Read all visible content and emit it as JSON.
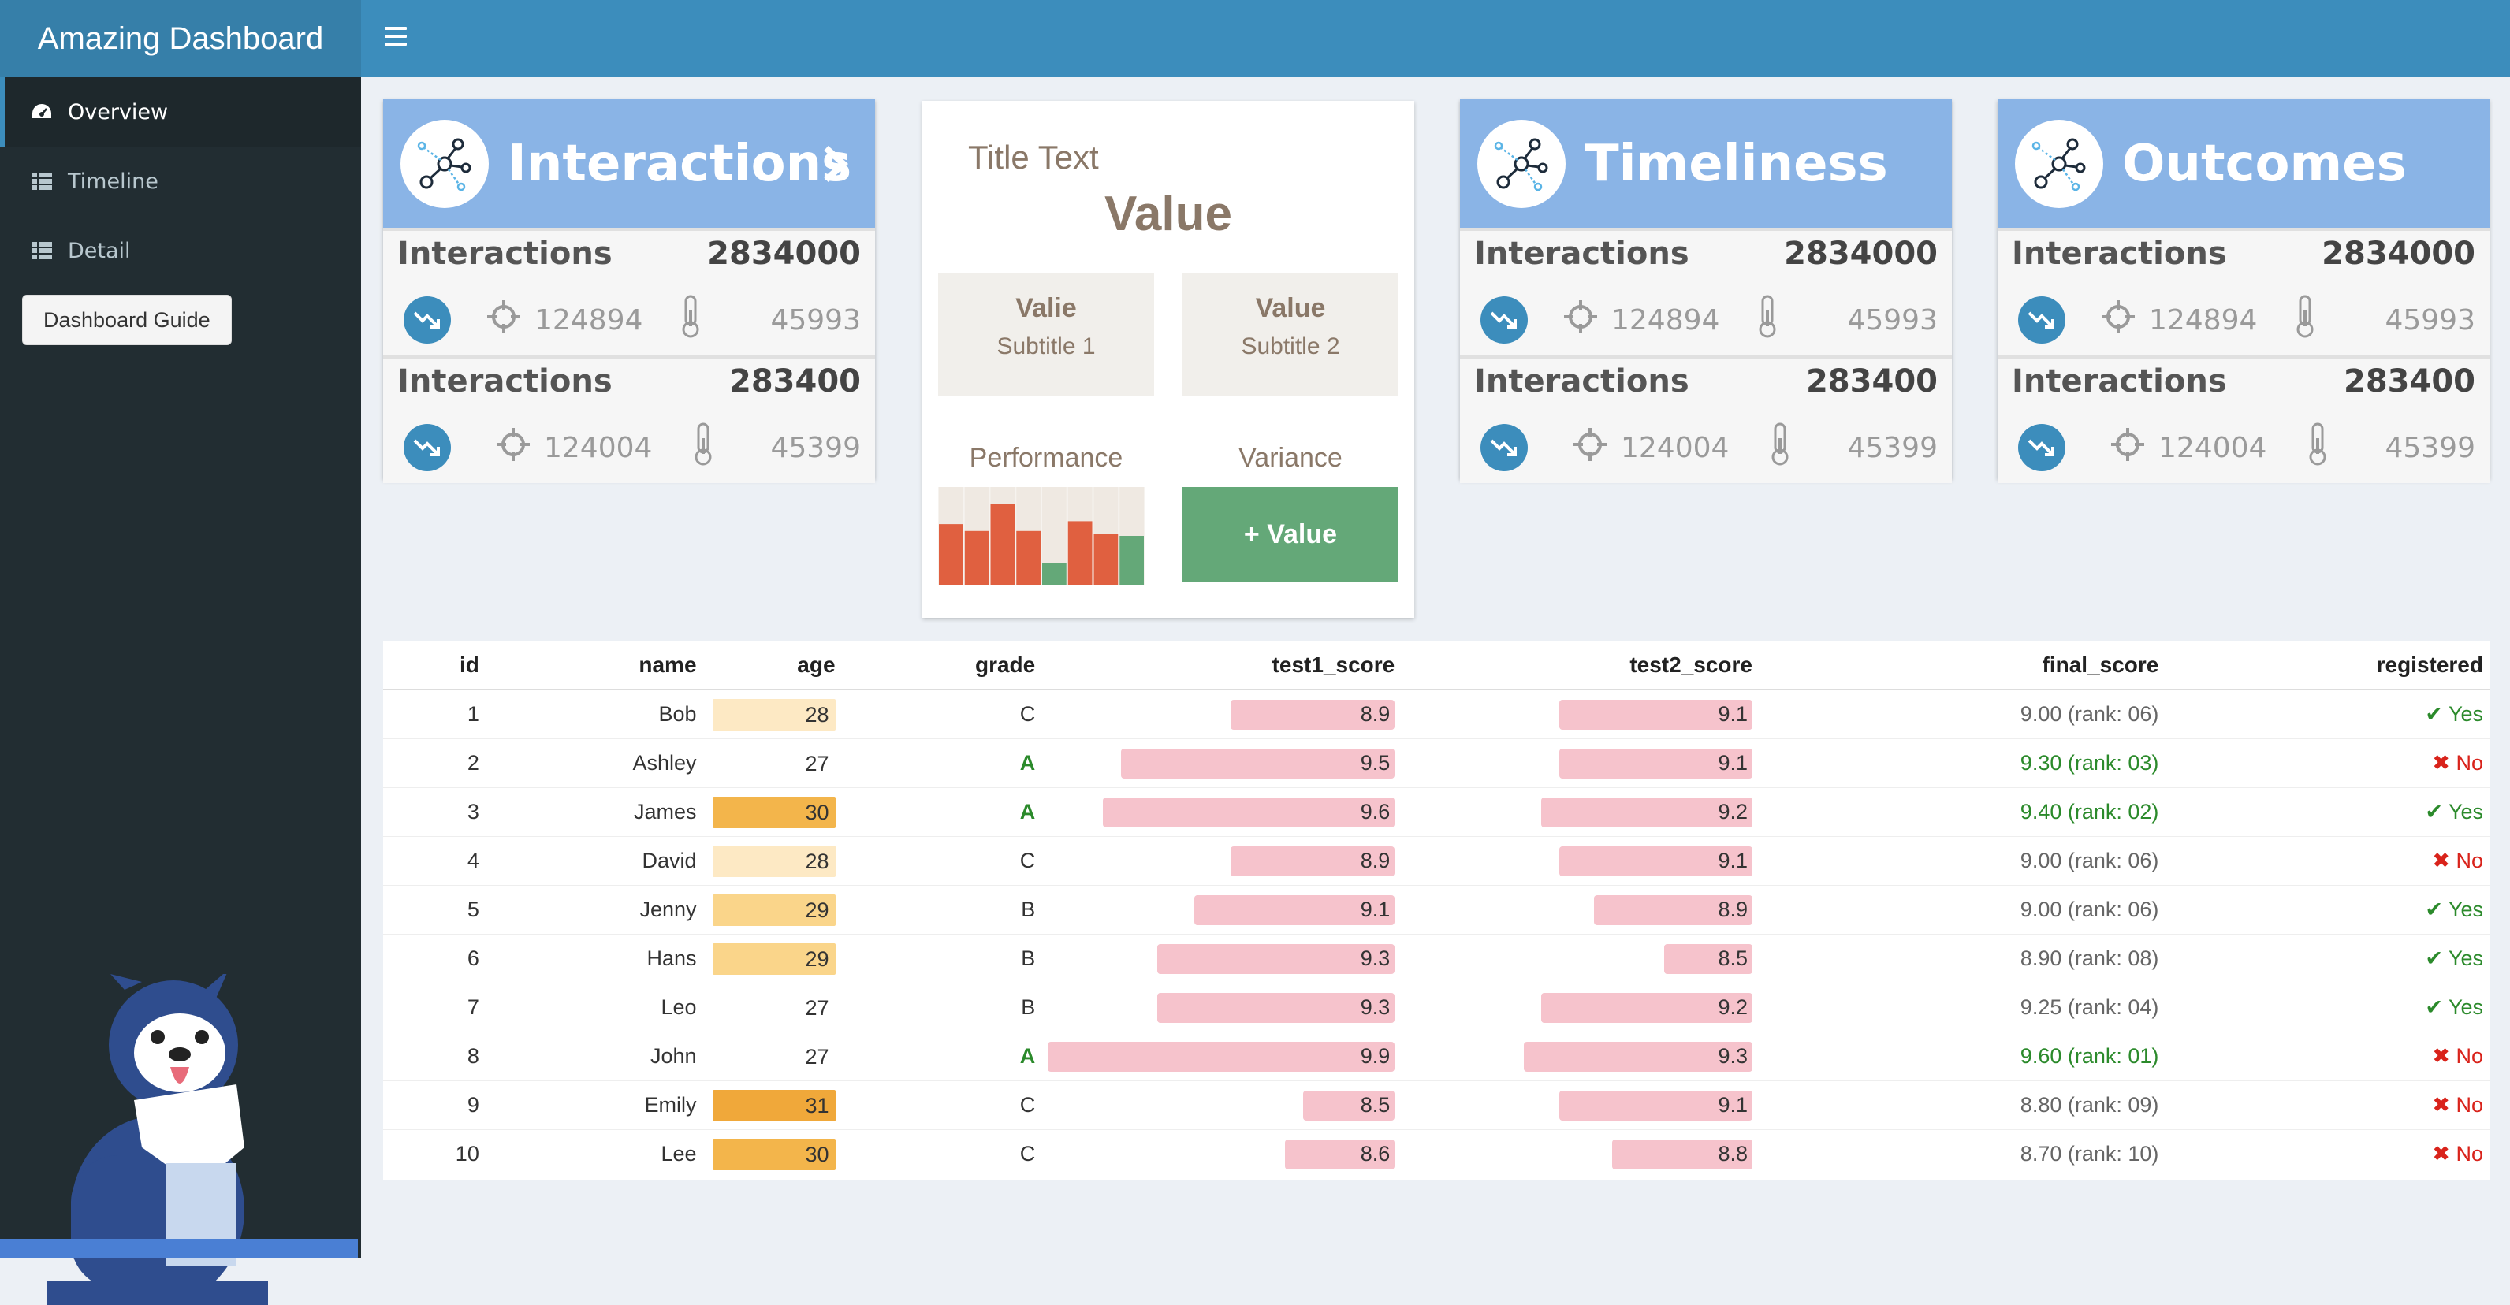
{
  "app": {
    "title": "Amazing Dashboard"
  },
  "sidebar": {
    "items": [
      {
        "label": "Overview",
        "icon": "dashboard-icon",
        "active": true
      },
      {
        "label": "Timeline",
        "icon": "grid-icon",
        "active": false
      },
      {
        "label": "Detail",
        "icon": "grid-icon",
        "active": false
      }
    ],
    "guide_button": "Dashboard Guide"
  },
  "value_boxes": [
    {
      "title": "Interactions",
      "rows": [
        {
          "label": "Interactions",
          "total": "2834000",
          "value1": "124894",
          "value2": "45993"
        },
        {
          "label": "Interactions",
          "total": "283400",
          "value1": "124004",
          "value2": "45399"
        }
      ]
    },
    {
      "title": "Timeliness",
      "rows": [
        {
          "label": "Interactions",
          "total": "2834000",
          "value1": "124894",
          "value2": "45993"
        },
        {
          "label": "Interactions",
          "total": "283400",
          "value1": "124004",
          "value2": "45399"
        }
      ]
    },
    {
      "title": "Outcomes",
      "rows": [
        {
          "label": "Interactions",
          "total": "2834000",
          "value1": "124894",
          "value2": "45993"
        },
        {
          "label": "Interactions",
          "total": "283400",
          "value1": "124004",
          "value2": "45399"
        }
      ]
    }
  ],
  "summary_card": {
    "title": "Title Text",
    "value": "Value",
    "tile1": {
      "title": "Valie",
      "subtitle": "Subtitle 1"
    },
    "tile2": {
      "title": "Value",
      "subtitle": "Subtitle 2"
    },
    "performance_label": "Performance",
    "variance_label": "Variance",
    "variance_button": "+ Value",
    "performance_bars": [
      0.62,
      0.55,
      0.83,
      0.55,
      0.22,
      0.65,
      0.52,
      0.5
    ],
    "performance_colors": [
      "#e06040",
      "#e06040",
      "#e06040",
      "#e06040",
      "#64a878",
      "#e06040",
      "#e06040",
      "#64a878"
    ]
  },
  "table": {
    "columns": [
      "id",
      "name",
      "age",
      "grade",
      "test1_score",
      "test2_score",
      "final_score",
      "registered"
    ],
    "rows": [
      {
        "id": "1",
        "name": "Bob",
        "age": "28",
        "grade": "C",
        "test1": "8.9",
        "test2": "9.1",
        "final": "9.00 (rank: 06)",
        "registered": "Yes"
      },
      {
        "id": "2",
        "name": "Ashley",
        "age": "27",
        "grade": "A",
        "test1": "9.5",
        "test2": "9.1",
        "final": "9.30 (rank: 03)",
        "registered": "No"
      },
      {
        "id": "3",
        "name": "James",
        "age": "30",
        "grade": "A",
        "test1": "9.6",
        "test2": "9.2",
        "final": "9.40 (rank: 02)",
        "registered": "Yes"
      },
      {
        "id": "4",
        "name": "David",
        "age": "28",
        "grade": "C",
        "test1": "8.9",
        "test2": "9.1",
        "final": "9.00 (rank: 06)",
        "registered": "No"
      },
      {
        "id": "5",
        "name": "Jenny",
        "age": "29",
        "grade": "B",
        "test1": "9.1",
        "test2": "8.9",
        "final": "9.00 (rank: 06)",
        "registered": "Yes"
      },
      {
        "id": "6",
        "name": "Hans",
        "age": "29",
        "grade": "B",
        "test1": "9.3",
        "test2": "8.5",
        "final": "8.90 (rank: 08)",
        "registered": "Yes"
      },
      {
        "id": "7",
        "name": "Leo",
        "age": "27",
        "grade": "B",
        "test1": "9.3",
        "test2": "9.2",
        "final": "9.25 (rank: 04)",
        "registered": "Yes"
      },
      {
        "id": "8",
        "name": "John",
        "age": "27",
        "grade": "A",
        "test1": "9.9",
        "test2": "9.3",
        "final": "9.60 (rank: 01)",
        "registered": "No"
      },
      {
        "id": "9",
        "name": "Emily",
        "age": "31",
        "grade": "C",
        "test1": "8.5",
        "test2": "9.1",
        "final": "8.80 (rank: 09)",
        "registered": "No"
      },
      {
        "id": "10",
        "name": "Lee",
        "age": "30",
        "grade": "C",
        "test1": "8.6",
        "test2": "8.8",
        "final": "8.70 (rank: 10)",
        "registered": "No"
      }
    ]
  },
  "colors": {
    "header": "#3c8dbc",
    "sidebar": "#222d32",
    "value_box_head": "#8ab4e6",
    "bar": "#f6c3cc",
    "variance_button": "#64a878"
  }
}
